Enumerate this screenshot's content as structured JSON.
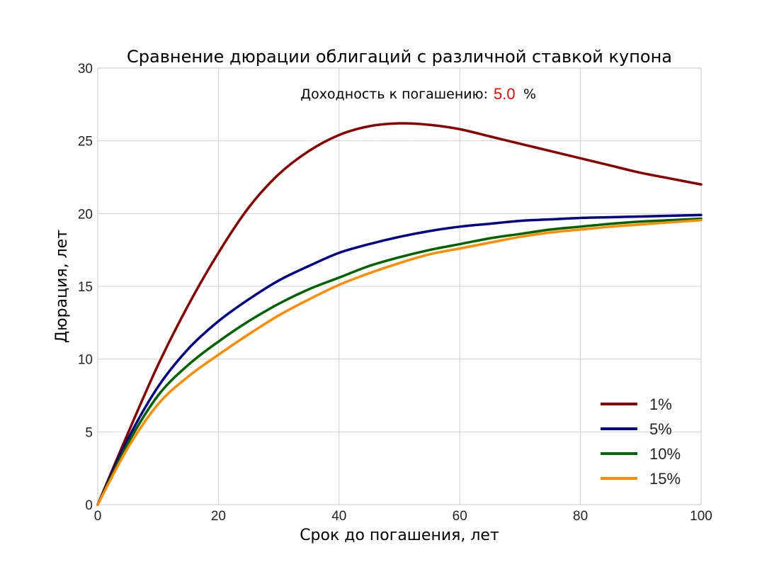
{
  "chart_data": {
    "type": "line",
    "title": "Сравнение дюрации облигаций с различной ставкой купона",
    "xlabel": "Срок до погашения, лет",
    "ylabel": "Дюрация, лет",
    "xlim": [
      0,
      100
    ],
    "ylim": [
      0,
      30
    ],
    "x_ticks": [
      0,
      20,
      40,
      60,
      80,
      100
    ],
    "y_ticks": [
      0,
      5,
      10,
      15,
      20,
      25,
      30
    ],
    "grid": true,
    "legend_position": "bottom-right",
    "annotation": {
      "label": "Доходность к погашению:",
      "value": "5.0",
      "unit": "%",
      "value_color": "#ff0000"
    },
    "x": [
      0,
      5,
      10,
      15,
      20,
      25,
      30,
      35,
      40,
      45,
      50,
      55,
      60,
      65,
      70,
      75,
      80,
      85,
      90,
      95,
      100
    ],
    "series": [
      {
        "name": "1%",
        "color": "#8b0000",
        "values": [
          0,
          4.9,
          9.6,
          13.7,
          17.3,
          20.4,
          22.7,
          24.3,
          25.4,
          26.0,
          26.2,
          26.1,
          25.8,
          25.3,
          24.8,
          24.3,
          23.8,
          23.3,
          22.8,
          22.4,
          22.0
        ]
      },
      {
        "name": "5%",
        "color": "#00008b",
        "values": [
          0,
          4.5,
          8.1,
          10.7,
          12.6,
          14.1,
          15.4,
          16.4,
          17.3,
          17.9,
          18.4,
          18.8,
          19.1,
          19.3,
          19.5,
          19.6,
          19.7,
          19.75,
          19.8,
          19.85,
          19.9
        ]
      },
      {
        "name": "10%",
        "color": "#006400",
        "values": [
          0,
          4.2,
          7.5,
          9.6,
          11.2,
          12.6,
          13.8,
          14.8,
          15.6,
          16.4,
          17.0,
          17.5,
          17.9,
          18.3,
          18.6,
          18.9,
          19.1,
          19.3,
          19.45,
          19.55,
          19.65
        ]
      },
      {
        "name": "15%",
        "color": "#ff8c00",
        "values": [
          0,
          3.9,
          6.9,
          8.8,
          10.3,
          11.7,
          13.0,
          14.1,
          15.1,
          15.9,
          16.6,
          17.2,
          17.6,
          18.0,
          18.4,
          18.7,
          18.9,
          19.1,
          19.25,
          19.4,
          19.55
        ]
      }
    ]
  }
}
